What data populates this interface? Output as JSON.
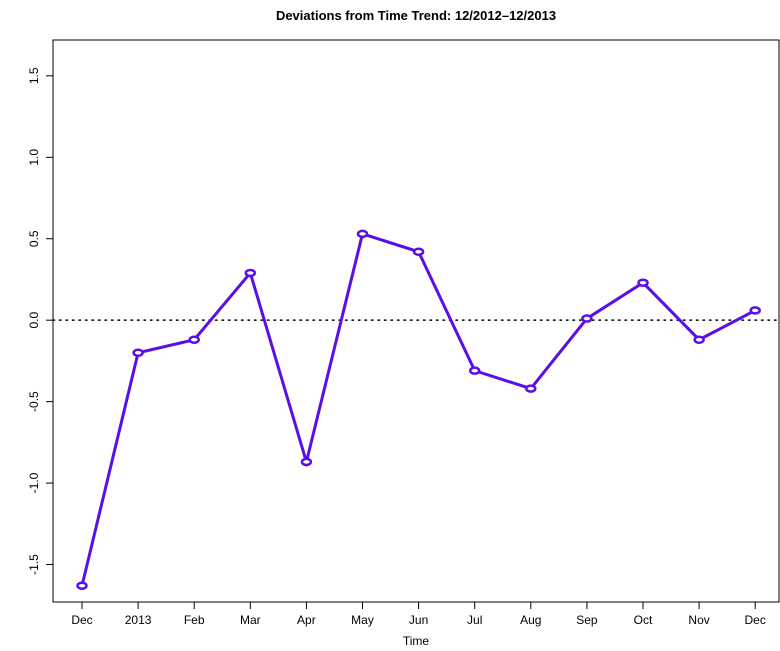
{
  "chart_data": {
    "type": "line",
    "title": "Deviations from Time Trend: 12/2012–12/2013",
    "x_label": "Time",
    "categories": [
      "Dec",
      "2013",
      "Feb",
      "Mar",
      "Apr",
      "May",
      "Jun",
      "Jul",
      "Aug",
      "Sep",
      "Oct",
      "Nov",
      "Dec"
    ],
    "series": [
      {
        "name": "Deviation",
        "color": "#5a0fe6",
        "values": [
          -1.63,
          -0.2,
          -0.12,
          0.29,
          -0.87,
          0.53,
          0.42,
          -0.31,
          -0.42,
          0.01,
          0.23,
          -0.12,
          0.06
        ]
      }
    ],
    "ylim": [
      -1.73,
      1.72
    ],
    "yticks": [
      -1.5,
      {
        "value": -1,
        "label": "-1.0"
      },
      -0.5,
      {
        "value": 0,
        "label": "0.0"
      },
      0.5,
      {
        "value": 1,
        "label": "1.0"
      },
      1.5
    ],
    "reference_line": 0,
    "markers": true
  }
}
